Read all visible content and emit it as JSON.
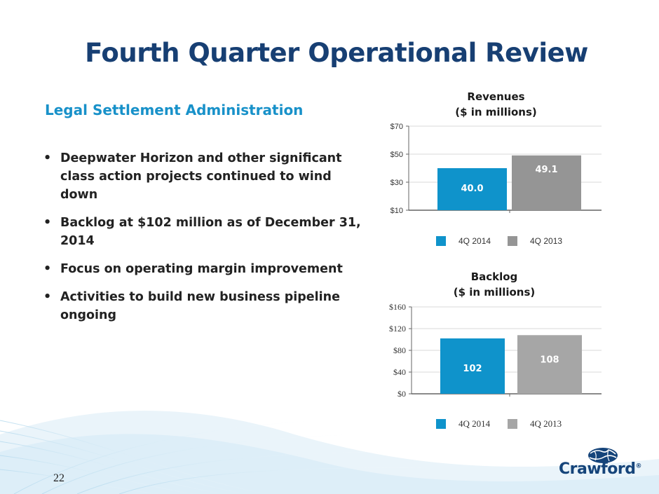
{
  "slide": {
    "title": "Fourth Quarter Operational Review",
    "subtitle": "Legal Settlement Administration",
    "bullets": [
      "Deepwater Horizon and other significant class action projects continued to wind down",
      "Backlog at $102 million as of December 31, 2014",
      "Focus on operating margin improvement",
      "Activities to build new business pipeline ongoing"
    ],
    "page_number": "22",
    "logo_text": "Crawford",
    "logo_mark": "®"
  },
  "colors": {
    "title": "#173f73",
    "subtitle": "#1891c9",
    "series_2014": "#0f93cb",
    "series_2013_rev": "#959595",
    "series_2013_backlog": "#a6a6a6"
  },
  "chart_data": [
    {
      "type": "bar",
      "title_lines": [
        "Revenues",
        "($ in millions)"
      ],
      "categories": [
        "4Q 2014",
        "4Q 2013"
      ],
      "values": [
        40.0,
        49.1
      ],
      "value_labels": [
        "40.0",
        "49.1"
      ],
      "legend": [
        "4Q 2014",
        "4Q 2013"
      ],
      "ylim": [
        10,
        70
      ],
      "ytick_values": [
        10,
        30,
        50,
        70
      ],
      "yticks": [
        "$10",
        "$30",
        "$50",
        "$70"
      ],
      "grid": true,
      "legend_position": "bottom"
    },
    {
      "type": "bar",
      "title_lines": [
        "Backlog",
        "($ in millions)"
      ],
      "categories": [
        "4Q 2014",
        "4Q 2013"
      ],
      "values": [
        102,
        108
      ],
      "value_labels": [
        "102",
        "108"
      ],
      "legend": [
        "4Q 2014",
        "4Q 2013"
      ],
      "ylim": [
        0,
        160
      ],
      "ytick_values": [
        0,
        40,
        80,
        120,
        160
      ],
      "yticks": [
        "$0",
        "$40",
        "$80",
        "$120",
        "$160"
      ],
      "grid": true,
      "legend_position": "bottom"
    }
  ]
}
